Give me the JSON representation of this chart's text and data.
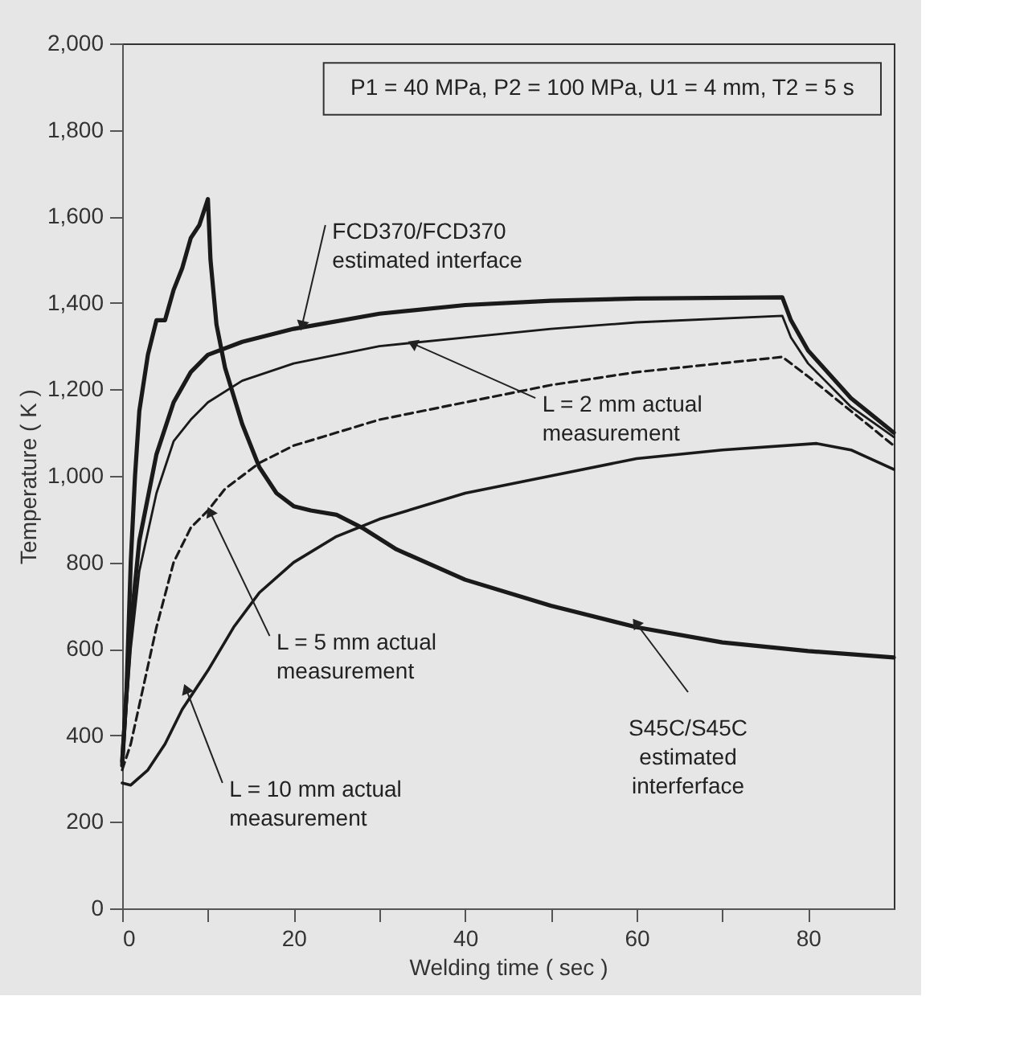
{
  "chart_data": {
    "type": "line",
    "xlabel": "Welding time ( sec )",
    "ylabel": "Temperature ( K )",
    "xlim": [
      0,
      90
    ],
    "ylim": [
      0,
      2000
    ],
    "xticks": [
      0,
      {
        "value": 10,
        "label": null
      },
      20,
      {
        "value": 30,
        "label": null
      },
      40,
      {
        "value": 50,
        "label": null
      },
      60,
      {
        "value": 70,
        "label": null
      },
      80
    ],
    "yticks": [
      0,
      200,
      400,
      600,
      800,
      {
        "value": 1000,
        "label": "1,000"
      },
      {
        "value": 1200,
        "label": "1,200"
      },
      {
        "value": 1400,
        "label": "1,400"
      },
      {
        "value": 1600,
        "label": "1,600"
      },
      {
        "value": 1800,
        "label": "1,800"
      },
      {
        "value": 2000,
        "label": "2,000"
      }
    ],
    "grid": false,
    "marker": "none",
    "series": [
      {
        "color": "#1a1a1a",
        "line_style": "solid",
        "x": [
          0,
          0.5,
          1,
          1.5,
          2,
          3,
          4,
          5,
          6,
          7,
          8,
          9,
          10,
          10.3,
          11,
          12,
          14,
          16,
          18,
          20,
          22,
          25,
          28,
          32,
          40,
          50,
          60,
          70,
          80,
          90
        ],
        "values": [
          330,
          500,
          800,
          1000,
          1150,
          1280,
          1360,
          1360,
          1430,
          1480,
          1550,
          1580,
          1640,
          1500,
          1350,
          1250,
          1120,
          1020,
          960,
          930,
          920,
          910,
          880,
          830,
          760,
          700,
          650,
          615,
          595,
          580
        ]
      },
      {
        "color": "#1a1a1a",
        "line_style": "solid",
        "x": [
          0,
          1,
          2,
          4,
          6,
          8,
          10,
          14,
          20,
          30,
          40,
          50,
          60,
          77,
          78,
          80,
          85,
          90
        ],
        "values": [
          340,
          650,
          850,
          1050,
          1170,
          1240,
          1280,
          1310,
          1340,
          1375,
          1395,
          1405,
          1410,
          1413,
          1360,
          1290,
          1180,
          1100
        ]
      },
      {
        "color": "#1a1a1a",
        "line_style": "solid",
        "x": [
          0,
          1,
          2,
          4,
          6,
          8,
          10,
          14,
          20,
          30,
          40,
          50,
          60,
          77,
          78,
          80,
          85,
          90
        ],
        "values": [
          330,
          600,
          780,
          960,
          1080,
          1130,
          1170,
          1220,
          1260,
          1300,
          1320,
          1340,
          1355,
          1370,
          1320,
          1260,
          1160,
          1090
        ]
      },
      {
        "color": "#1a1a1a",
        "line_style": "dashed",
        "x": [
          0,
          1,
          2,
          4,
          6,
          8,
          10,
          12,
          16,
          20,
          30,
          40,
          50,
          60,
          77,
          80,
          85,
          90
        ],
        "values": [
          320,
          380,
          470,
          650,
          800,
          880,
          920,
          970,
          1030,
          1070,
          1130,
          1170,
          1210,
          1240,
          1275,
          1230,
          1150,
          1070
        ]
      },
      {
        "color": "#1a1a1a",
        "line_style": "solid",
        "x": [
          0,
          1,
          3,
          5,
          7,
          10,
          13,
          16,
          20,
          25,
          30,
          40,
          50,
          60,
          70,
          81,
          85,
          90
        ],
        "values": [
          290,
          285,
          320,
          380,
          460,
          550,
          650,
          730,
          800,
          860,
          900,
          960,
          1000,
          1040,
          1060,
          1075,
          1060,
          1015
        ]
      }
    ],
    "annotations": [
      "P1 = 40 MPa, P2 = 100 MPa, U1 = 4 mm, T2 = 5 s",
      {
        "text": "FCD370/FCD370\nestimated interface",
        "x": 21,
        "y": 1350
      },
      {
        "text": "L = 2 mm actual\nmeasurement",
        "x": 34,
        "y": 1305
      },
      {
        "text": "L = 5 mm actual\nmeasurement",
        "x": 10.3,
        "y": 915
      },
      {
        "text": "L = 10 mm actual\nmeasurement",
        "x": 7.5,
        "y": 505
      },
      {
        "text": "S45C/S45C\nestimated\ninterferface",
        "x": 60,
        "y": 658
      }
    ]
  }
}
